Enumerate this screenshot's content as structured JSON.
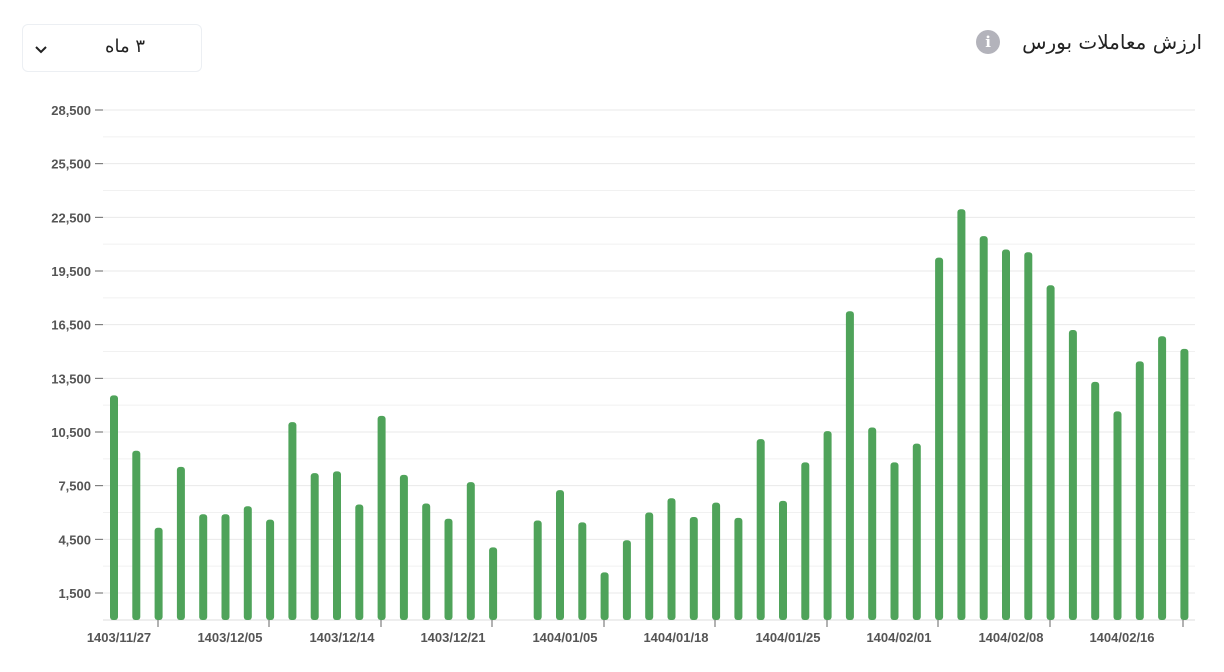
{
  "header": {
    "title": "ارزش معاملات بورس",
    "info_icon": "info-icon",
    "period_value": "۳ ماه",
    "dropdown_icon": "chevron-down-icon"
  },
  "colors": {
    "bar": "#4fa35a",
    "grid": "#e9e9e9",
    "axis_text": "#555555"
  },
  "chart_data": {
    "type": "bar",
    "title": "ارزش معاملات بورس",
    "xlabel": "",
    "ylabel": "",
    "ylim": [
      0,
      28500
    ],
    "grid": true,
    "y_ticks": [
      "1,500",
      "4,500",
      "7,500",
      "10,500",
      "13,500",
      "16,500",
      "19,500",
      "22,500",
      "25,500",
      "28,500"
    ],
    "x_tick_labels": [
      "1403/11/27",
      "1403/12/05",
      "1403/12/14",
      "1403/12/21",
      "1404/01/05",
      "1404/01/18",
      "1404/01/25",
      "1404/02/01",
      "1404/02/08",
      "1404/02/16"
    ],
    "values": [
      12550,
      9450,
      5150,
      8550,
      5900,
      5900,
      6350,
      5600,
      11050,
      8200,
      8300,
      6450,
      11400,
      8100,
      6500,
      5650,
      7700,
      4050,
      null,
      5550,
      7250,
      5450,
      2650,
      4450,
      6000,
      6800,
      5750,
      6550,
      5700,
      10100,
      6650,
      8800,
      10550,
      17250,
      10750,
      8800,
      9850,
      20250,
      22950,
      21450,
      20700,
      20550,
      18700,
      16200,
      13300,
      11650,
      14450,
      15850,
      15150
    ]
  }
}
